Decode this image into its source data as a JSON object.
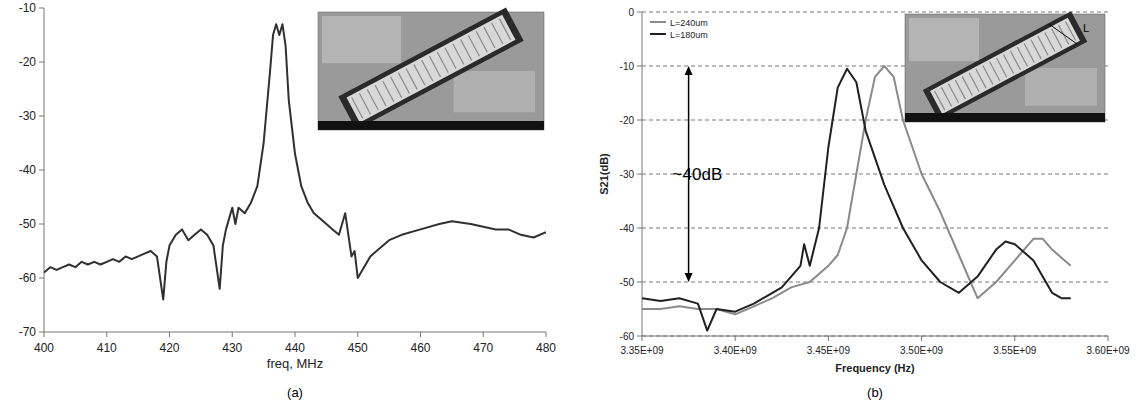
{
  "chart_data": [
    {
      "type": "line",
      "title": "(a)",
      "x_label": "freq, MHz",
      "color": "#303030",
      "grid": false,
      "xlim": [
        400,
        480
      ],
      "xticks": [
        400,
        410,
        420,
        430,
        440,
        450,
        460,
        470,
        480
      ],
      "ylim": [
        -70,
        -10
      ],
      "yticks": [
        -70,
        -60,
        -50,
        -40,
        -30,
        -20,
        -10
      ],
      "x": [
        400,
        401,
        402,
        403,
        404,
        405,
        406,
        407,
        408,
        409,
        410,
        411,
        412,
        413,
        414,
        415,
        416,
        417,
        418,
        419,
        419.5,
        420,
        421,
        422,
        423,
        424,
        425,
        426,
        427,
        428,
        428.5,
        429,
        430,
        430.5,
        431,
        432,
        433,
        434,
        435,
        436,
        436.5,
        437,
        437.5,
        438,
        438.5,
        439,
        440,
        441,
        442,
        443,
        444,
        445,
        446,
        447,
        448,
        449,
        449.5,
        450,
        451,
        452,
        453,
        455,
        457,
        460,
        463,
        465,
        468,
        470,
        472,
        474,
        476,
        478,
        480
      ],
      "values": [
        -59,
        -58,
        -58.5,
        -58,
        -57.5,
        -58,
        -57,
        -57.5,
        -57,
        -57.5,
        -57,
        -56.5,
        -57,
        -56,
        -56.5,
        -56,
        -55.5,
        -55,
        -56,
        -64,
        -57,
        -54,
        -52,
        -51,
        -53,
        -52,
        -51,
        -52,
        -54,
        -62,
        -54,
        -51,
        -47,
        -50,
        -47,
        -48,
        -46,
        -43,
        -35,
        -22,
        -15,
        -13,
        -15,
        -13,
        -17,
        -27,
        -37,
        -43,
        -46,
        -48,
        -49,
        -50,
        -51,
        -52,
        -48,
        -56,
        -55,
        -60,
        -58,
        -56,
        -55,
        -53,
        -52,
        -51,
        -50,
        -49.5,
        -50,
        -50.5,
        -51,
        -51,
        -52,
        -52.5,
        -51.5
      ]
    },
    {
      "type": "line",
      "title": "(b)",
      "x_label": "Frequency (Hz)",
      "y_label": "S21(dB)",
      "grid": true,
      "legend": "top-left",
      "inset_label": "L",
      "xlim": [
        3350000000,
        3600000000
      ],
      "xticks": [
        {
          "value": 3350000000,
          "label": "3.35E+09"
        },
        {
          "value": 3400000000,
          "label": "3.40E+09"
        },
        {
          "value": 3450000000,
          "label": "3.45E+09"
        },
        {
          "value": 3500000000,
          "label": "3.50E+09"
        },
        {
          "value": 3550000000,
          "label": "3.55E+09"
        },
        {
          "value": 3600000000,
          "label": "3.60E+09"
        }
      ],
      "ylim": [
        -60,
        0
      ],
      "yticks": [
        -60,
        -50,
        -40,
        -30,
        -20,
        -10,
        0
      ],
      "annotations": [
        {
          "text": "~40dB",
          "x": 3375000000,
          "y1": -10,
          "y2": -50
        }
      ],
      "series": [
        {
          "name": "L=240um",
          "color": "#8a8a8a",
          "x": [
            3350000000,
            3360000000,
            3370000000,
            3380000000,
            3390000000,
            3400000000,
            3410000000,
            3420000000,
            3430000000,
            3440000000,
            3450000000,
            3455000000,
            3460000000,
            3465000000,
            3470000000,
            3475000000,
            3480000000,
            3485000000,
            3490000000,
            3500000000,
            3510000000,
            3520000000,
            3530000000,
            3540000000,
            3550000000,
            3560000000,
            3565000000,
            3570000000,
            3580000000
          ],
          "values": [
            -55,
            -55,
            -54.5,
            -55,
            -55,
            -56,
            -54.5,
            -53,
            -51,
            -50,
            -47,
            -45,
            -40,
            -30,
            -20,
            -12,
            -10,
            -12,
            -20,
            -30,
            -37,
            -45,
            -53,
            -50,
            -46,
            -42,
            -42,
            -44,
            -47
          ]
        },
        {
          "name": "L=180um",
          "color": "#202020",
          "x": [
            3350000000,
            3360000000,
            3370000000,
            3380000000,
            3385000000,
            3390000000,
            3400000000,
            3410000000,
            3420000000,
            3425000000,
            3430000000,
            3435000000,
            3437000000,
            3440000000,
            3445000000,
            3450000000,
            3455000000,
            3460000000,
            3465000000,
            3470000000,
            3480000000,
            3490000000,
            3500000000,
            3510000000,
            3520000000,
            3530000000,
            3540000000,
            3545000000,
            3550000000,
            3560000000,
            3570000000,
            3575000000,
            3580000000
          ],
          "values": [
            -53,
            -53.5,
            -53,
            -54,
            -59,
            -55,
            -55.5,
            -54,
            -52,
            -51,
            -49,
            -47,
            -43,
            -47,
            -40,
            -25,
            -14,
            -10.5,
            -13,
            -22,
            -32,
            -40,
            -46,
            -50,
            -52,
            -49,
            -44,
            -42.5,
            -43,
            -46,
            -52,
            -53,
            -53
          ]
        }
      ]
    }
  ]
}
